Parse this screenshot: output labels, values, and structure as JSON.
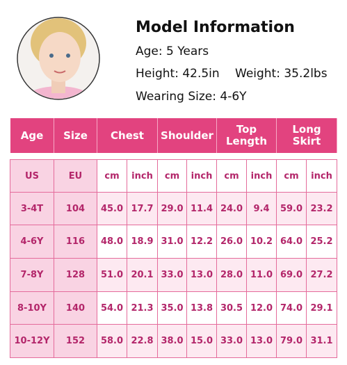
{
  "model": {
    "title": "Model Information",
    "age": "Age: 5 Years",
    "height": "Height: 42.5in",
    "weight": "Weight: 35.2lbs",
    "size": "Wearing Size: 4-6Y"
  },
  "table": {
    "headers": [
      "Age",
      "Size",
      "Chest",
      "Shoulder",
      "Top Length",
      "Long Skirt"
    ],
    "units": [
      "US",
      "EU",
      "cm",
      "inch",
      "cm",
      "inch",
      "cm",
      "inch",
      "cm",
      "inch"
    ],
    "rows": [
      [
        "3-4T",
        "104",
        "45.0",
        "17.7",
        "29.0",
        "11.4",
        "24.0",
        "9.4",
        "59.0",
        "23.2"
      ],
      [
        "4-6Y",
        "116",
        "48.0",
        "18.9",
        "31.0",
        "12.2",
        "26.0",
        "10.2",
        "64.0",
        "25.2"
      ],
      [
        "7-8Y",
        "128",
        "51.0",
        "20.1",
        "33.0",
        "13.0",
        "28.0",
        "11.0",
        "69.0",
        "27.2"
      ],
      [
        "8-10Y",
        "140",
        "54.0",
        "21.3",
        "35.0",
        "13.8",
        "30.5",
        "12.0",
        "74.0",
        "29.1"
      ],
      [
        "10-12Y",
        "152",
        "58.0",
        "22.8",
        "38.0",
        "15.0",
        "33.0",
        "13.0",
        "79.0",
        "31.1"
      ]
    ]
  }
}
